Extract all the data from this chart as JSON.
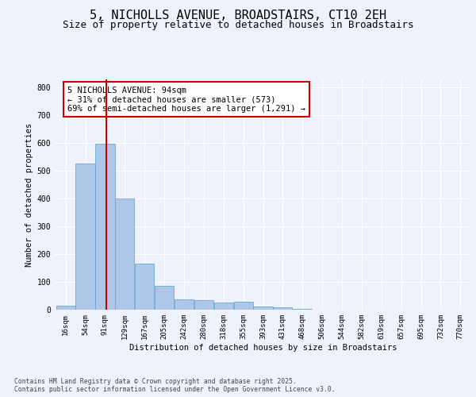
{
  "title1": "5, NICHOLLS AVENUE, BROADSTAIRS, CT10 2EH",
  "title2": "Size of property relative to detached houses in Broadstairs",
  "xlabel": "Distribution of detached houses by size in Broadstairs",
  "ylabel": "Number of detached properties",
  "footnote": "Contains HM Land Registry data © Crown copyright and database right 2025.\nContains public sector information licensed under the Open Government Licence v3.0.",
  "bar_labels": [
    "16sqm",
    "54sqm",
    "91sqm",
    "129sqm",
    "167sqm",
    "205sqm",
    "242sqm",
    "280sqm",
    "318sqm",
    "355sqm",
    "393sqm",
    "431sqm",
    "468sqm",
    "506sqm",
    "544sqm",
    "582sqm",
    "619sqm",
    "657sqm",
    "695sqm",
    "732sqm",
    "770sqm"
  ],
  "bar_values": [
    14,
    527,
    597,
    402,
    167,
    87,
    36,
    35,
    25,
    28,
    12,
    10,
    3,
    0,
    0,
    0,
    0,
    0,
    0,
    0,
    0
  ],
  "bar_color": "#aec6e8",
  "bar_edgecolor": "#5a9fd4",
  "vline_x": 2,
  "vline_color": "#cc0000",
  "annotation_text": "5 NICHOLLS AVENUE: 94sqm\n← 31% of detached houses are smaller (573)\n69% of semi-detached houses are larger (1,291) →",
  "annotation_box_edgecolor": "#cc0000",
  "annotation_fontsize": 7.5,
  "ylim": [
    0,
    830
  ],
  "yticks": [
    0,
    100,
    200,
    300,
    400,
    500,
    600,
    700,
    800
  ],
  "bg_color": "#eef3fb",
  "plot_bg_color": "#eef3fb",
  "title1_fontsize": 11,
  "title2_fontsize": 9,
  "grid_color": "#ffffff",
  "tick_fontsize": 6.5,
  "footnote_fontsize": 5.8
}
